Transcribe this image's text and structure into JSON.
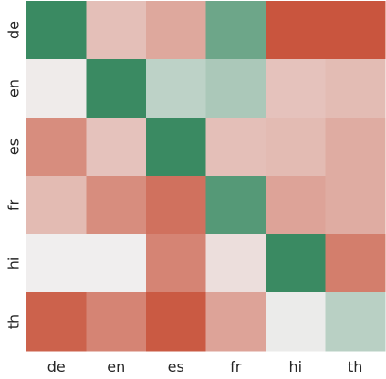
{
  "chart_data": {
    "type": "heatmap",
    "title": "",
    "xlabel": "",
    "ylabel": "",
    "x_categories": [
      "de",
      "en",
      "es",
      "fr",
      "hi",
      "th"
    ],
    "y_categories": [
      "de",
      "en",
      "es",
      "fr",
      "hi",
      "th"
    ],
    "grid": false,
    "legend": "none",
    "colormap": {
      "low": "#c8523a",
      "mid": "#f0eeee",
      "high": "#3a8a62",
      "range": [
        -1,
        1
      ]
    },
    "values": [
      [
        1.0,
        -0.3,
        -0.45,
        0.72,
        -0.98,
        -0.98
      ],
      [
        -0.02,
        1.0,
        0.28,
        0.38,
        -0.28,
        -0.32
      ],
      [
        -0.62,
        -0.28,
        1.0,
        -0.3,
        -0.33,
        -0.42
      ],
      [
        -0.33,
        -0.62,
        -0.8,
        0.85,
        -0.48,
        -0.42
      ],
      [
        0.0,
        0.0,
        -0.68,
        -0.1,
        1.0,
        -0.72
      ],
      [
        -0.9,
        -0.68,
        -0.95,
        -0.48,
        0.03,
        0.3
      ]
    ]
  }
}
